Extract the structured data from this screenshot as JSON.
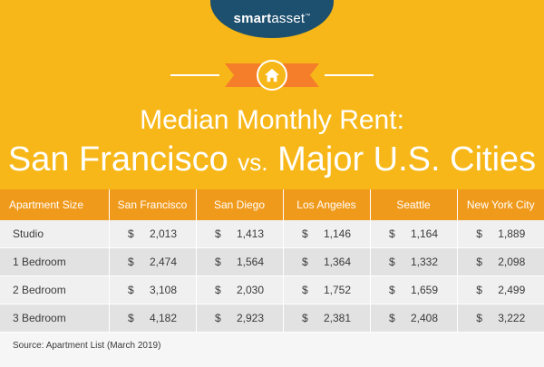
{
  "brand": {
    "name_bold": "smart",
    "name_light": "asset",
    "trademark": "™"
  },
  "title": {
    "line1": "Median Monthly Rent:",
    "line2_a": "San Francisco ",
    "line2_vs": "vs.",
    "line2_b": " Major U.S. Cities"
  },
  "source": "Source: Apartment List (March 2019)",
  "colors": {
    "banner": "#f7b718",
    "header_row": "#f09a1c",
    "logo_tab": "#1d4f6e",
    "ribbon": "#f47e2a"
  },
  "icon": "home-icon",
  "chart_data": {
    "type": "table",
    "columns": [
      "Apartment Size",
      "San Francisco",
      "San Diego",
      "Los Angeles",
      "Seattle",
      "New York City"
    ],
    "currency_symbol": "$",
    "rows": [
      {
        "label": "Studio",
        "values": [
          "2,013",
          "1,413",
          "1,146",
          "1,164",
          "1,889"
        ]
      },
      {
        "label": "1 Bedroom",
        "values": [
          "2,474",
          "1,564",
          "1,364",
          "1,332",
          "2,098"
        ]
      },
      {
        "label": "2 Bedroom",
        "values": [
          "3,108",
          "2,030",
          "1,752",
          "1,659",
          "2,499"
        ]
      },
      {
        "label": "3 Bedroom",
        "values": [
          "4,182",
          "2,923",
          "2,381",
          "2,408",
          "3,222"
        ]
      }
    ]
  }
}
